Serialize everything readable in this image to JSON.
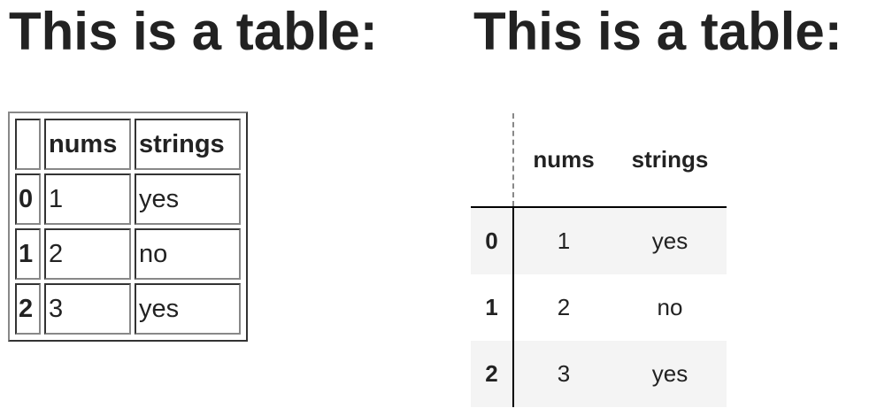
{
  "left": {
    "heading": "This is a table:",
    "columns": [
      "",
      "nums",
      "strings"
    ],
    "rows": [
      {
        "index": "0",
        "nums": "1",
        "strings": "yes"
      },
      {
        "index": "1",
        "nums": "2",
        "strings": "no"
      },
      {
        "index": "2",
        "nums": "3",
        "strings": "yes"
      }
    ]
  },
  "right": {
    "heading": "This is a table:",
    "columns": [
      "",
      "nums",
      "strings"
    ],
    "rows": [
      {
        "index": "0",
        "nums": "1",
        "strings": "yes"
      },
      {
        "index": "1",
        "nums": "2",
        "strings": "no"
      },
      {
        "index": "2",
        "nums": "3",
        "strings": "yes"
      }
    ],
    "stripe_color": "#f4f4f4"
  }
}
